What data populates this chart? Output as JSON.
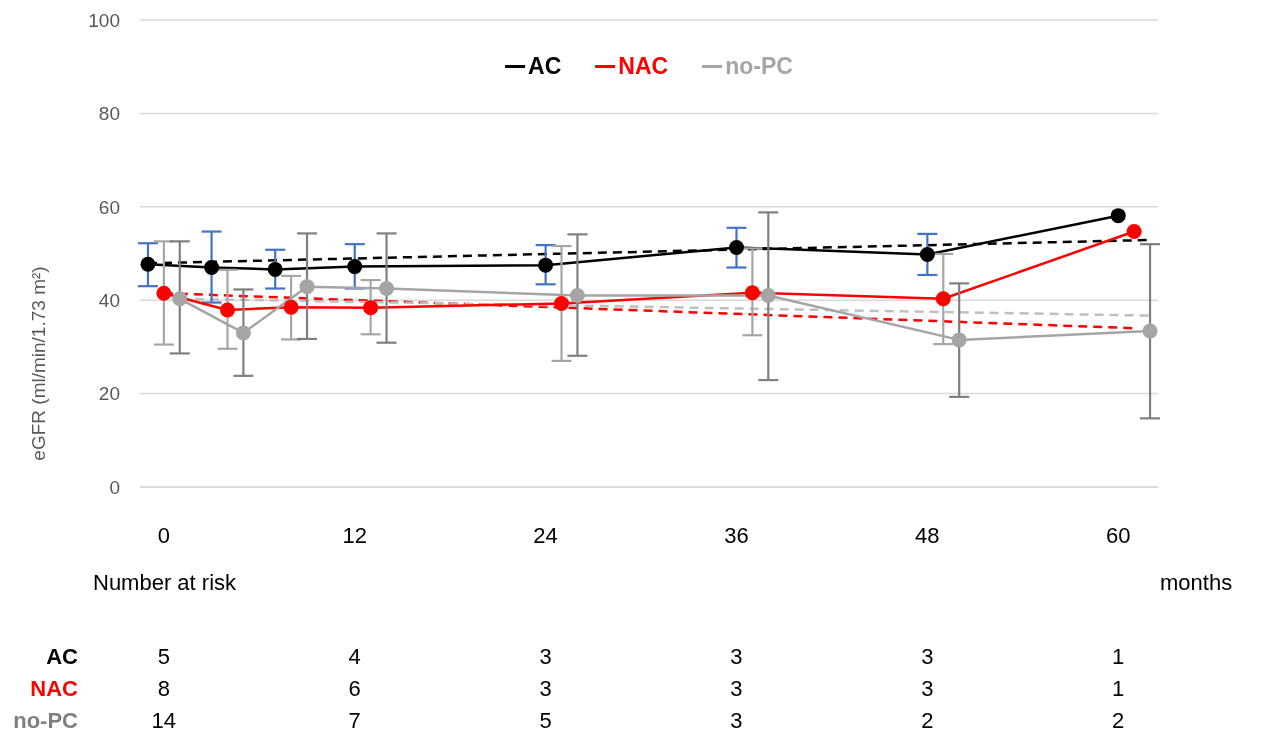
{
  "chart_data": {
    "type": "line",
    "ylabel": "eGFR (ml/min/1.73 m²)",
    "xlim": [
      -1.5,
      62.5
    ],
    "xticks": [
      0,
      12,
      24,
      36,
      48,
      60
    ],
    "ylim": [
      0,
      100
    ],
    "yticks": [
      0,
      20,
      40,
      60,
      80,
      100
    ],
    "grid": "y",
    "legend": "top",
    "marker": "circle",
    "line_style": "solid",
    "series": [
      {
        "name": "AC",
        "color": "#000000",
        "x": [
          -1,
          3,
          7,
          12,
          24,
          36,
          48,
          60
        ],
        "values": [
          47.7,
          47.0,
          46.6,
          47.2,
          47.5,
          51.3,
          49.8,
          58.1
        ],
        "errors": [
          [
            43.0,
            52.2
          ],
          [
            39.5,
            54.7
          ],
          [
            42.5,
            50.8
          ],
          [
            42.5,
            52.0
          ],
          [
            43.4,
            51.8
          ],
          [
            47.0,
            55.5
          ],
          [
            45.4,
            54.2
          ],
          null
        ]
      },
      {
        "name": "NAC",
        "color": "#ff0000",
        "x": [
          0,
          4,
          8,
          13,
          25,
          37,
          49,
          61
        ],
        "values": [
          41.5,
          37.9,
          38.5,
          38.4,
          39.3,
          41.6,
          40.3,
          54.7
        ],
        "errors": [
          [
            30.5,
            52.6
          ],
          [
            29.6,
            46.5
          ],
          [
            31.6,
            45.2
          ],
          [
            32.7,
            44.3
          ],
          [
            27.0,
            51.6
          ],
          [
            32.5,
            51.1
          ],
          [
            30.6,
            49.9
          ],
          null
        ]
      },
      {
        "name": "no-PC",
        "color": "#a5a5a5",
        "x": [
          1,
          5,
          9,
          14,
          26,
          38,
          50,
          62
        ],
        "values": [
          40.3,
          33.0,
          42.9,
          42.5,
          41.0,
          41.0,
          31.5,
          33.4
        ],
        "errors": [
          [
            28.6,
            52.6
          ],
          [
            23.8,
            42.3
          ],
          [
            31.7,
            54.3
          ],
          [
            30.9,
            54.3
          ],
          [
            28.1,
            54.1
          ],
          [
            22.9,
            58.8
          ],
          [
            19.3,
            43.6
          ],
          [
            14.7,
            52.0
          ]
        ]
      },
      {
        "type": "line",
        "color": "#000000",
        "x": [
          -1,
          62
        ],
        "values": [
          47.9,
          52.9
        ],
        "line_style": "dashed",
        "marker": "none"
      },
      {
        "type": "line",
        "color": "#ff0000",
        "x": [
          0,
          61
        ],
        "values": [
          41.5,
          34.0
        ],
        "line_style": "dashed",
        "marker": "none"
      },
      {
        "type": "line",
        "color": "#bfbfbf",
        "x": [
          1,
          62
        ],
        "values": [
          40.3,
          36.7
        ],
        "line_style": "dashed",
        "marker": "none"
      }
    ],
    "annotations": [
      "Number at risk",
      "months",
      "AC",
      "5",
      "4",
      "3",
      "3",
      "3",
      "1",
      "NAC",
      "8",
      "6",
      "3",
      "3",
      "3",
      "1",
      "no-PC",
      "14",
      "7",
      "5",
      "3",
      "2",
      "2"
    ]
  }
}
